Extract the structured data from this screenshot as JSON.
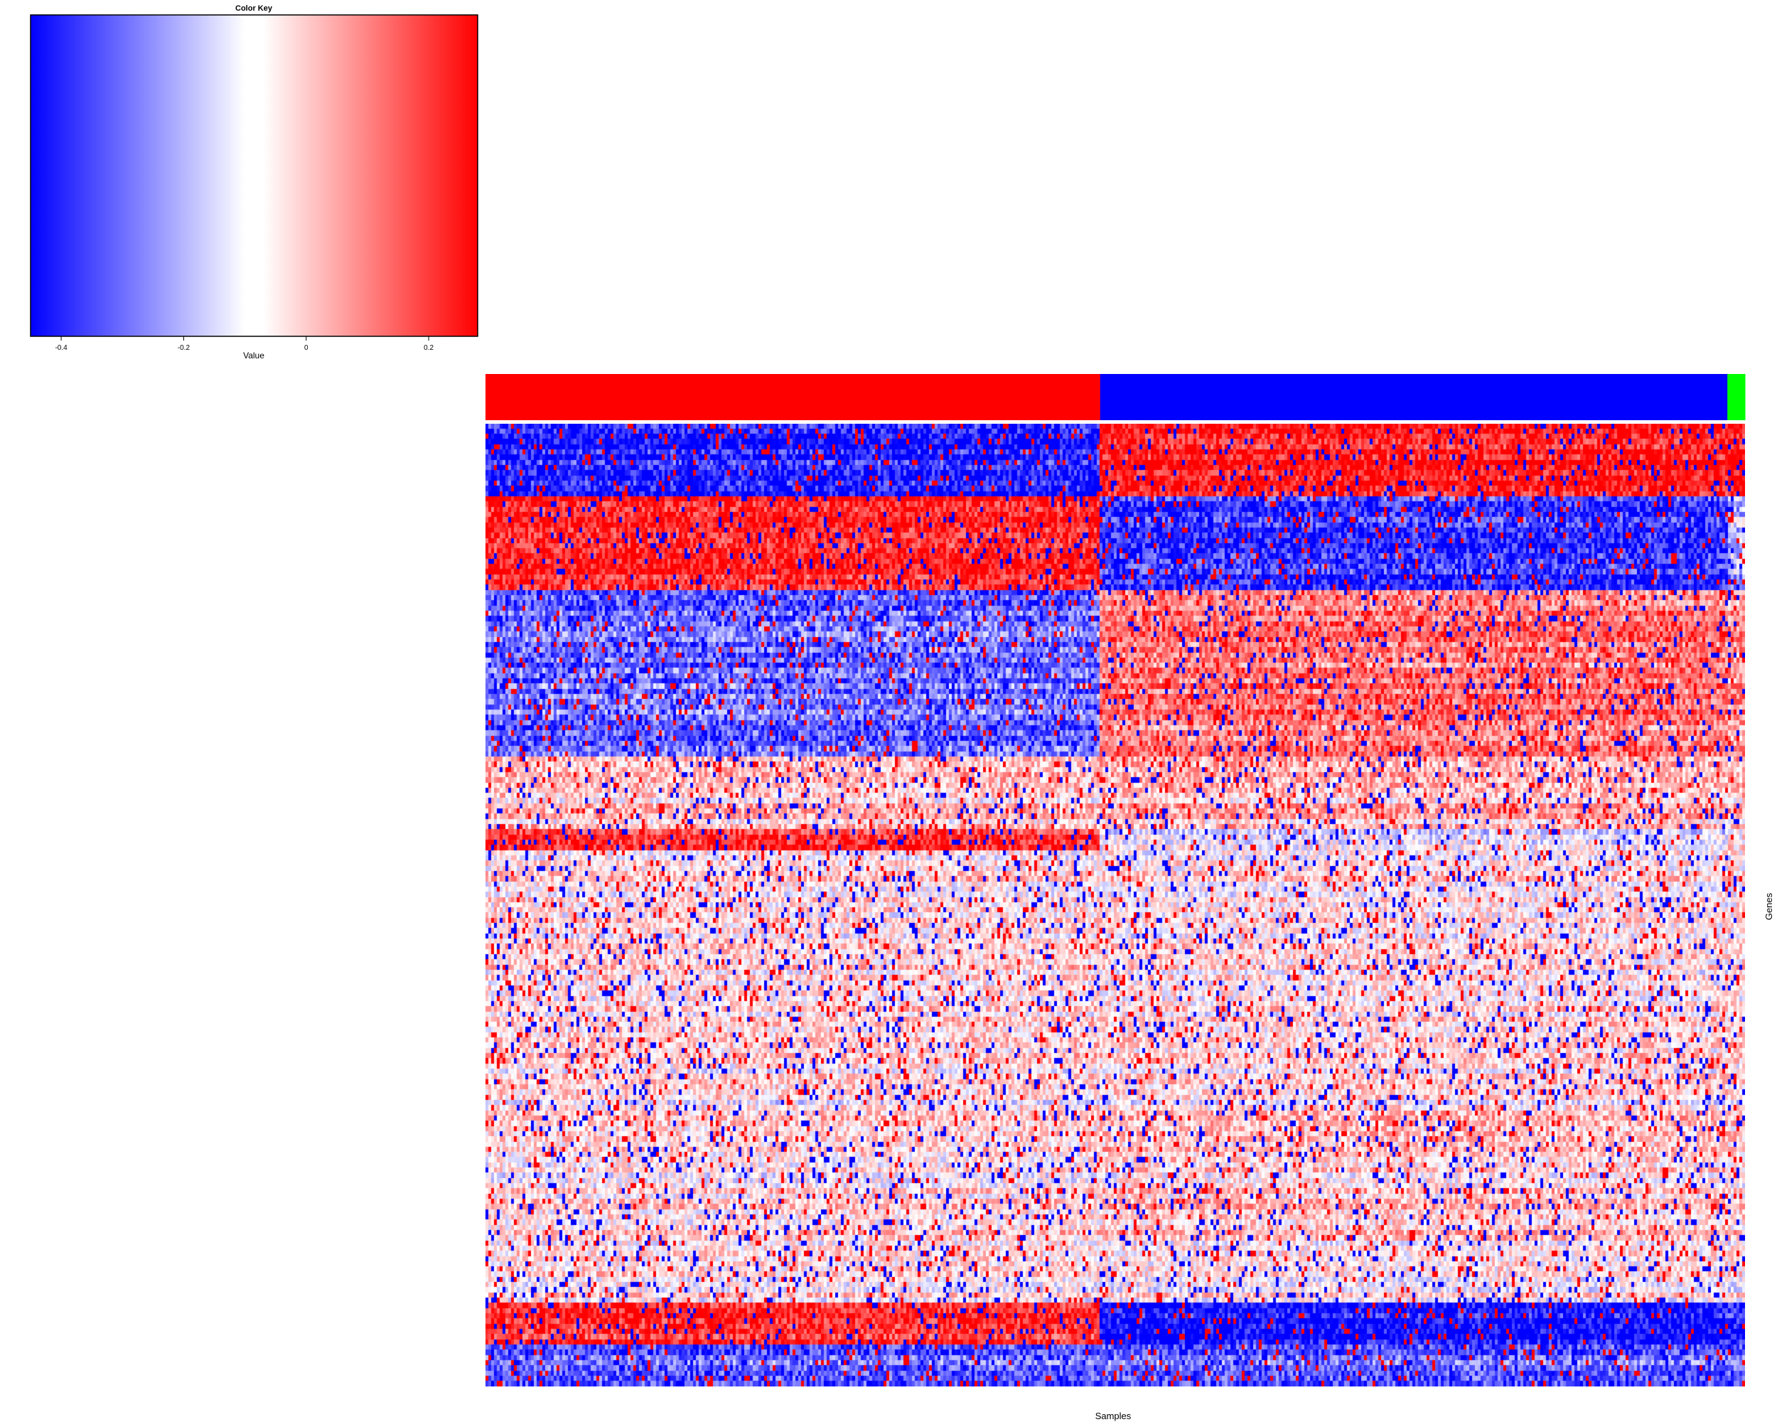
{
  "chart_data": {
    "type": "heatmap",
    "title": "",
    "xlabel": "Samples",
    "ylabel": "Genes",
    "color_key": {
      "title": "Color Key",
      "xlabel": "Value",
      "range": [
        -0.45,
        0.28
      ],
      "colors": [
        "#0000ff",
        "#ffffff",
        "#ff0000"
      ],
      "midpoint": -0.1,
      "ticks": [
        {
          "value": -0.4,
          "label": "-0.4"
        },
        {
          "value": -0.2,
          "label": "-0.2"
        },
        {
          "value": 0,
          "label": "0"
        },
        {
          "value": 0.2,
          "label": "0.2"
        }
      ]
    },
    "column_groups": [
      {
        "color": "#ff0000",
        "fraction": 0.488
      },
      {
        "color": "#0000ff",
        "fraction": 0.498
      },
      {
        "color": "#00ff00",
        "fraction": 0.014
      }
    ],
    "row_blocks": [
      {
        "rows": 14,
        "means": [
          -0.4,
          0.25,
          0.27
        ]
      },
      {
        "rows": 18,
        "means": [
          0.22,
          -0.38,
          -0.2
        ]
      },
      {
        "rows": 32,
        "means": [
          -0.3,
          0.1,
          0.05
        ]
      },
      {
        "rows": 14,
        "means": [
          -0.02,
          0.0,
          0.0
        ]
      },
      {
        "rows": 4,
        "means": [
          0.18,
          -0.15,
          -0.1
        ]
      },
      {
        "rows": 40,
        "means": [
          -0.05,
          -0.06,
          -0.05
        ]
      },
      {
        "rows": 10,
        "means": [
          -0.08,
          -0.08,
          -0.1
        ]
      },
      {
        "rows": 25,
        "means": [
          -0.06,
          -0.03,
          -0.05
        ]
      },
      {
        "rows": 12,
        "means": [
          -0.06,
          -0.07,
          -0.08
        ]
      },
      {
        "rows": 8,
        "means": [
          0.22,
          -0.42,
          -0.4
        ]
      },
      {
        "rows": 8,
        "means": [
          -0.3,
          -0.3,
          -0.3
        ]
      }
    ]
  }
}
